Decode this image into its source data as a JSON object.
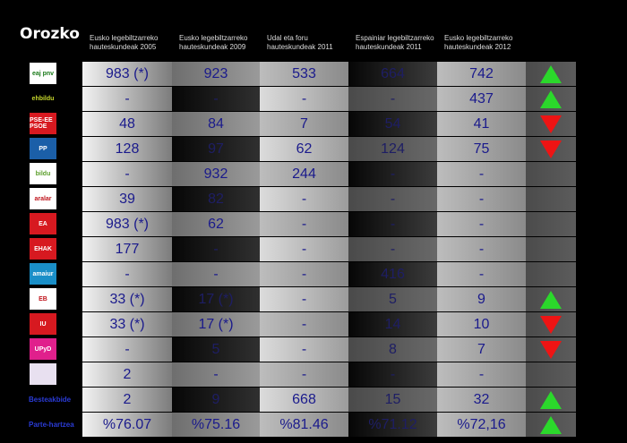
{
  "title": "Orozko",
  "headers": [
    [
      "Eusko legebiltzarreko",
      "hauteskundeak 2005"
    ],
    [
      "Eusko legebiltzarreko",
      "hauteskundeak 2009"
    ],
    [
      "Udal eta foru",
      "hauteskundeak 2011"
    ],
    [
      "Espainiar legebiltzarreko",
      "hauteskundeak 2011"
    ],
    [
      "Eusko legebiltzarreko",
      "hauteskundeak 2012"
    ]
  ],
  "rows": [
    {
      "party": "eaj-pnv",
      "logo_text": "eaj pnv",
      "logo_bg": "#ffffff",
      "logo_fg": "#1a7a1a",
      "values": [
        "983 (*)",
        "923",
        "533",
        "664",
        "742"
      ],
      "trend": "up"
    },
    {
      "party": "ehbildu",
      "logo_text": "ehbildu",
      "logo_bg": "#000000",
      "logo_fg": "#c6d62c",
      "values": [
        "-",
        "-",
        "-",
        "-",
        "437"
      ],
      "trend": "up"
    },
    {
      "party": "pse-ee",
      "logo_text": "PSE-EE PSOE",
      "logo_bg": "#d71920",
      "logo_fg": "#ffffff",
      "values": [
        "48",
        "84",
        "7",
        "54",
        "41"
      ],
      "trend": "down"
    },
    {
      "party": "pp",
      "logo_text": "PP",
      "logo_bg": "#1b5fa8",
      "logo_fg": "#ffffff",
      "values": [
        "128",
        "97",
        "62",
        "124",
        "75"
      ],
      "trend": "down"
    },
    {
      "party": "bildu",
      "logo_text": "bildu",
      "logo_bg": "#ffffff",
      "logo_fg": "#5a9e2a",
      "values": [
        "-",
        "932",
        "244",
        "-",
        "-"
      ],
      "trend": ""
    },
    {
      "party": "aralar",
      "logo_text": "aralar",
      "logo_bg": "#ffffff",
      "logo_fg": "#c0141c",
      "values": [
        "39",
        "82",
        "-",
        "-",
        "-"
      ],
      "trend": ""
    },
    {
      "party": "ea",
      "logo_text": "EA",
      "logo_bg": "#d71920",
      "logo_fg": "#ffffff",
      "values": [
        "983 (*)",
        "62",
        "-",
        "-",
        "-"
      ],
      "trend": ""
    },
    {
      "party": "ehak",
      "logo_text": "EHAK",
      "logo_bg": "#d71920",
      "logo_fg": "#ffffff",
      "values": [
        "177",
        "-",
        "-",
        "-",
        "-"
      ],
      "trend": ""
    },
    {
      "party": "amaiur",
      "logo_text": "amaiur",
      "logo_bg": "#1a8fc8",
      "logo_fg": "#ffffff",
      "values": [
        "-",
        "-",
        "-",
        "416",
        "-"
      ],
      "trend": ""
    },
    {
      "party": "ezker-batua",
      "logo_text": "EB",
      "logo_bg": "#ffffff",
      "logo_fg": "#c0141c",
      "values": [
        "33 (*)",
        "17 (*)",
        "-",
        "5",
        "9"
      ],
      "trend": "up"
    },
    {
      "party": "iu",
      "logo_text": "IU",
      "logo_bg": "#d71920",
      "logo_fg": "#ffffff",
      "values": [
        "33 (*)",
        "17 (*)",
        "-",
        "14",
        "10"
      ],
      "trend": "down"
    },
    {
      "party": "upyd",
      "logo_text": "UPyD",
      "logo_bg": "#e0208c",
      "logo_fg": "#ffffff",
      "values": [
        "-",
        "5",
        "-",
        "8",
        "7"
      ],
      "trend": "down"
    },
    {
      "party": "others",
      "logo_text": "",
      "logo_bg": "#e8e0f0",
      "logo_fg": "#5a2b8a",
      "values": [
        "2",
        "-",
        "-",
        "-",
        "-"
      ],
      "trend": ""
    }
  ],
  "extra_rows": [
    {
      "label": "Besteakbide",
      "values": [
        "2",
        "9",
        "668",
        "15",
        "32"
      ],
      "trend": "up"
    },
    {
      "label": "Parte-hartzea",
      "values": [
        "%76.07",
        "%75.16",
        "%81.46",
        "%71.12",
        "%72,16"
      ],
      "trend": "up"
    }
  ],
  "colors": {
    "up": "#2bd82b",
    "down": "#ee1414",
    "value": "#1a1a8c",
    "label": "#2a3bd6"
  }
}
